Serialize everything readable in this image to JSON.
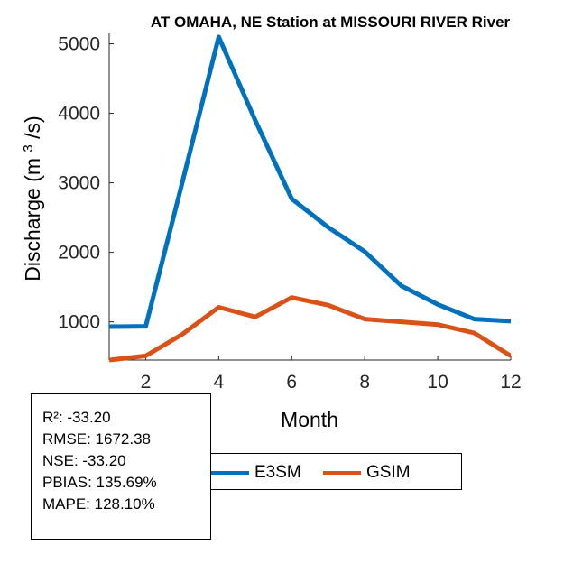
{
  "chart_data": {
    "type": "line",
    "title": "AT OMAHA, NE  Station at  MISSOURI RIVER  River",
    "xlabel": "Month",
    "ylabel": "Discharge (m³/s)",
    "ylabel_parts": {
      "pre": "Discharge (m",
      "sup": "3",
      "post": "/s)"
    },
    "xlim": [
      1,
      12
    ],
    "ylim": [
      450,
      5150
    ],
    "xticks": [
      2,
      4,
      6,
      8,
      10,
      12
    ],
    "yticks": [
      1000,
      2000,
      3000,
      4000,
      5000
    ],
    "x": [
      1,
      2,
      3,
      4,
      5,
      6,
      7,
      8,
      9,
      10,
      11,
      12
    ],
    "series": [
      {
        "name": "E3SM",
        "color": "#0072BD",
        "values": [
          930,
          935,
          3000,
          5100,
          3900,
          2770,
          2360,
          2010,
          1520,
          1250,
          1040,
          1010
        ]
      },
      {
        "name": "GSIM",
        "color": "#D95319",
        "values": [
          450,
          510,
          820,
          1210,
          1070,
          1350,
          1240,
          1040,
          1000,
          960,
          840,
          510
        ]
      }
    ],
    "legend_position": "bottom-right"
  },
  "stats": [
    "R²: -33.20",
    "RMSE: 1672.38",
    "NSE: -33.20",
    "PBIAS: 135.69%",
    "MAPE: 128.10%"
  ]
}
